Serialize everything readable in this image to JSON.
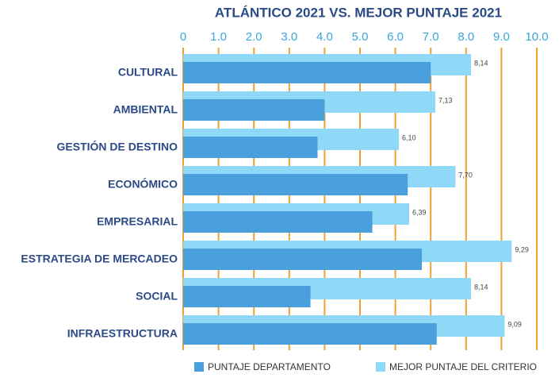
{
  "chart_data": {
    "type": "bar",
    "orientation": "horizontal",
    "title": "ATLÁNTICO 2021 VS. MEJOR PUNTAJE 2021",
    "categories": [
      "CULTURAL",
      "AMBIENTAL",
      "GESTIÓN DE DESTINO",
      "ECONÓMICO",
      "EMPRESARIAL",
      "ESTRATEGIA DE MERCADEO",
      "SOCIAL",
      "INFRAESTRUCTURA"
    ],
    "series": [
      {
        "name": "PUNTAJE DEPARTAMENTO",
        "color": "#4aa0dc",
        "values": [
          7.0,
          4.0,
          3.8,
          6.35,
          5.35,
          6.75,
          3.6,
          7.17
        ]
      },
      {
        "name": "MEJOR PUNTAJE DEL CRITERIO",
        "color": "#8fd8f7",
        "values": [
          8.14,
          7.13,
          6.1,
          7.7,
          6.39,
          9.29,
          8.14,
          9.09
        ],
        "value_labels": [
          "8,14",
          "7,13",
          "6,10",
          "7,70",
          "6,39",
          "9,29",
          "8,14",
          "9,09"
        ]
      }
    ],
    "xlim": [
      0,
      10
    ],
    "xticks": [
      0,
      {
        "value": 1,
        "label": "1.0"
      },
      {
        "value": 2,
        "label": "2.0"
      },
      {
        "value": 3,
        "label": "3.0"
      },
      {
        "value": 4,
        "label": "4.0"
      },
      {
        "value": 5,
        "label": "5.0"
      },
      {
        "value": 6,
        "label": "6.0"
      },
      {
        "value": 7,
        "label": "7.0"
      },
      {
        "value": 8,
        "label": "8.0"
      },
      {
        "value": 9,
        "label": "9.0"
      },
      {
        "value": 10,
        "label": "10.0"
      }
    ],
    "grid": true,
    "grid_color": "#f0a030",
    "legend": "bottom"
  }
}
